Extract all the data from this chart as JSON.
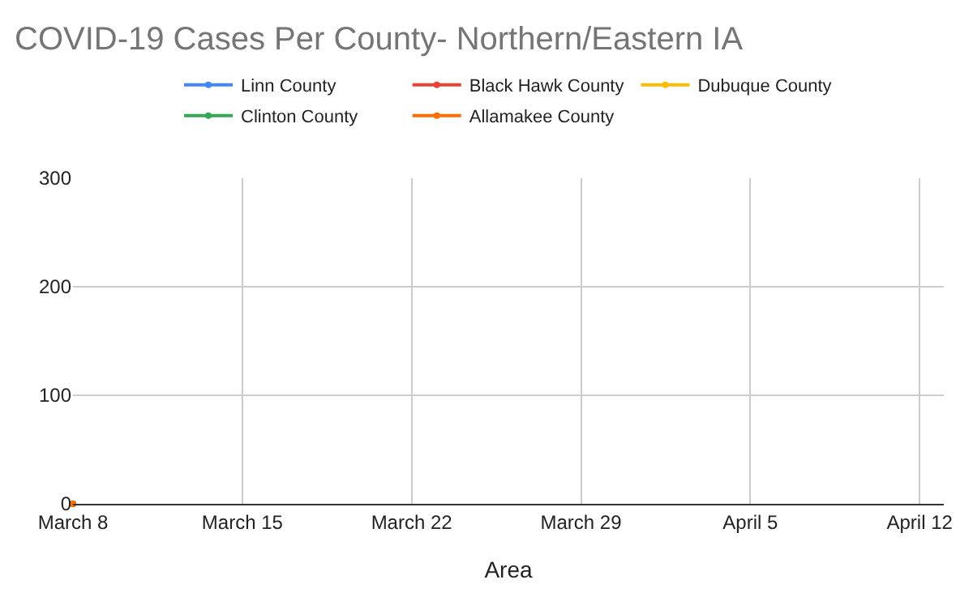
{
  "chart_data": {
    "type": "line",
    "title": "COVID-19 Cases Per County- Northern/Eastern IA",
    "xlabel": "Area",
    "x": [
      "--03-08"
    ],
    "series": [
      {
        "name": "Linn County",
        "color": "#4285f4",
        "values": [
          0
        ]
      },
      {
        "name": "Black Hawk County",
        "color": "#ea4335",
        "values": [
          0
        ]
      },
      {
        "name": "Dubuque County",
        "color": "#fbbc04",
        "values": [
          0
        ]
      },
      {
        "name": "Clinton County",
        "color": "#34a853",
        "values": [
          0
        ]
      },
      {
        "name": "Allamakee County",
        "color": "#ff6d01",
        "values": [
          0
        ]
      }
    ],
    "xlim": [
      "--03-08",
      "--04-13"
    ],
    "xticks": [
      {
        "value": "--03-08",
        "label": "March 8"
      },
      {
        "value": "--03-15",
        "label": "March 15"
      },
      {
        "value": "--03-22",
        "label": "March 22"
      },
      {
        "value": "--03-29",
        "label": "March 29"
      },
      {
        "value": "--04-05",
        "label": "April 5"
      },
      {
        "value": "--04-12",
        "label": "April 12"
      }
    ],
    "ylim": [
      0,
      300
    ],
    "yticks": [
      0,
      100,
      200,
      300
    ],
    "grid": true,
    "legend": "top",
    "marker": "circle",
    "line_style": "solid"
  }
}
